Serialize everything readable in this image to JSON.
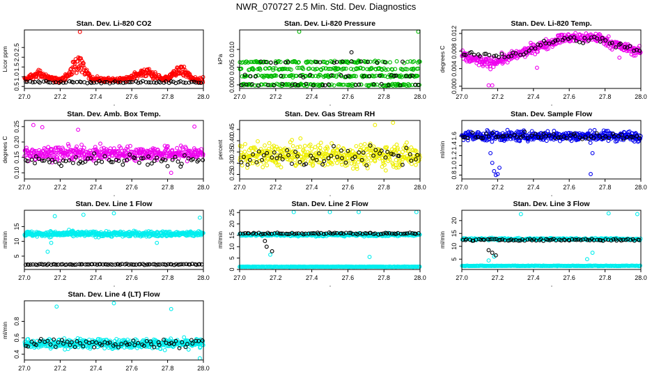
{
  "page": {
    "title": "NWR_070727  2.5 Min. Std. Dev. Diagnostics"
  },
  "chart_data": [
    {
      "type": "scatter",
      "title": "Stan. Dev. Li-820 CO2",
      "ylabel": "Licor ppm",
      "xlim": [
        27.0,
        28.0
      ],
      "ylim": [
        0.4,
        3.4
      ],
      "xticks": [
        "27.0",
        "27.2",
        "27.4",
        "27.6",
        "27.8",
        "28.0"
      ],
      "yticks": [
        {
          "v": 0.5,
          "label": "0.5"
        },
        {
          "v": 1.0,
          "label": "1.0"
        },
        {
          "v": 1.5,
          "label": "1.5"
        },
        {
          "v": 2.0,
          "label": "2.0"
        },
        {
          "v": 2.5,
          "label": "2.5"
        }
      ],
      "series": [
        {
          "color": "#ff0000",
          "base": 0.85,
          "noise": 0.12,
          "points": 440,
          "bumps": [
            {
              "x": 27.08,
              "w": 0.05,
              "h": 0.35
            },
            {
              "x": 27.3,
              "w": 0.05,
              "h": 1.0
            },
            {
              "x": 27.68,
              "w": 0.07,
              "h": 0.4
            },
            {
              "x": 27.87,
              "w": 0.05,
              "h": 0.6
            }
          ],
          "outliers": [
            {
              "x": 27.31,
              "y": 3.3
            }
          ]
        },
        {
          "color": "#000000",
          "base": 0.72,
          "noise": 0.05,
          "points": 70
        }
      ]
    },
    {
      "type": "scatter",
      "title": "Stan. Dev. Li-820 Pressure",
      "ylabel": "kPa",
      "xlim": [
        27.0,
        28.0
      ],
      "ylim": [
        -0.001,
        0.0155
      ],
      "xticks": [
        "27.0",
        "27.2",
        "27.4",
        "27.6",
        "27.8",
        "28.0"
      ],
      "yticks": [
        {
          "v": 0,
          "label": "0.000"
        },
        {
          "v": 0.005,
          "label": "0.005"
        },
        {
          "v": 0.01,
          "label": "0.010"
        }
      ],
      "series": [
        {
          "color": "#00bb00",
          "levels": [
            0,
            0.0025,
            0.0045,
            0.0065
          ],
          "points": 460,
          "outliers": [
            {
              "x": 27.33,
              "y": 0.015
            },
            {
              "x": 27.99,
              "y": 0.015
            }
          ]
        },
        {
          "color": "#000000",
          "levels": [
            0,
            0.0025,
            0.0065
          ],
          "points": 60,
          "outliers": [
            {
              "x": 27.62,
              "y": 0.0092
            }
          ]
        }
      ]
    },
    {
      "type": "scatter",
      "title": "Stan. Dev. Li-820 Temp.",
      "ylabel": "degrees C",
      "xlim": [
        27.0,
        28.0
      ],
      "ylim": [
        -0.0005,
        0.0128
      ],
      "xticks": [
        "27.0",
        "27.2",
        "27.4",
        "27.6",
        "27.8",
        "28.0"
      ],
      "yticks": [
        {
          "v": 0,
          "label": "0.000"
        },
        {
          "v": 0.004,
          "label": "0.004"
        },
        {
          "v": 0.008,
          "label": "0.008"
        },
        {
          "v": 0.012,
          "label": "0.012"
        }
      ],
      "series": [
        {
          "color": "#ee00ee",
          "trend": [
            [
              27.0,
              0.0068
            ],
            [
              27.15,
              0.0052
            ],
            [
              27.3,
              0.007
            ],
            [
              27.55,
              0.0108
            ],
            [
              27.75,
              0.0112
            ],
            [
              27.9,
              0.0088
            ],
            [
              28.0,
              0.0078
            ]
          ],
          "noise": 0.0011,
          "points": 420,
          "outliers": [
            {
              "x": 27.15,
              "y": 0.0002
            },
            {
              "x": 27.17,
              "y": 0.0002
            },
            {
              "x": 27.42,
              "y": 0.0042
            },
            {
              "x": 27.88,
              "y": 0.0065
            }
          ]
        },
        {
          "color": "#000000",
          "trend": [
            [
              27.0,
              0.0072
            ],
            [
              27.3,
              0.0072
            ],
            [
              27.55,
              0.0108
            ],
            [
              27.8,
              0.0104
            ],
            [
              28.0,
              0.0078
            ]
          ],
          "noise": 0.0008,
          "points": 60
        }
      ]
    },
    {
      "type": "scatter",
      "title": "Stan. Dev. Amb. Box Temp.",
      "ylabel": "degrees C",
      "xlim": [
        27.0,
        28.0
      ],
      "ylim": [
        0.08,
        0.27
      ],
      "xticks": [
        "27.0",
        "27.2",
        "27.4",
        "27.6",
        "27.8",
        "28.0"
      ],
      "yticks": [
        {
          "v": 0.1,
          "label": "0.10"
        },
        {
          "v": 0.15,
          "label": "0.15"
        },
        {
          "v": 0.2,
          "label": "0.20"
        },
        {
          "v": 0.25,
          "label": "0.25"
        }
      ],
      "series": [
        {
          "color": "#ee00ee",
          "base": 0.163,
          "noise": 0.022,
          "points": 440,
          "outliers": [
            {
              "x": 27.05,
              "y": 0.255
            },
            {
              "x": 27.1,
              "y": 0.248
            },
            {
              "x": 27.95,
              "y": 0.25
            },
            {
              "x": 27.3,
              "y": 0.24
            },
            {
              "x": 27.82,
              "y": 0.1
            }
          ]
        },
        {
          "color": "#000000",
          "base": 0.14,
          "noise": 0.018,
          "points": 65
        }
      ]
    },
    {
      "type": "scatter",
      "title": "Stan. Dev. Gas Stream RH",
      "ylabel": "percent",
      "xlim": [
        27.0,
        28.0
      ],
      "ylim": [
        0.23,
        0.49
      ],
      "xticks": [
        "27.0",
        "27.2",
        "27.4",
        "27.6",
        "27.8",
        "28.0"
      ],
      "yticks": [
        {
          "v": 0.25,
          "label": "0.25"
        },
        {
          "v": 0.3,
          "label": "0.30"
        },
        {
          "v": 0.35,
          "label": "0.35"
        },
        {
          "v": 0.4,
          "label": "0.40"
        },
        {
          "v": 0.45,
          "label": "0.45"
        }
      ],
      "series": [
        {
          "color": "#eeee00",
          "base": 0.335,
          "noise": 0.05,
          "points": 440,
          "outliers": [
            {
              "x": 27.75,
              "y": 0.47
            },
            {
              "x": 27.85,
              "y": 0.48
            }
          ]
        },
        {
          "color": "#000000",
          "base": 0.33,
          "noise": 0.045,
          "points": 60
        }
      ]
    },
    {
      "type": "scatter",
      "title": "Stan. Dev. Sample Flow",
      "ylabel": "ml/min",
      "xlim": [
        27.0,
        28.0
      ],
      "ylim": [
        0.72,
        1.92
      ],
      "xticks": [
        "27.0",
        "27.2",
        "27.4",
        "27.6",
        "27.8",
        "28.0"
      ],
      "yticks": [
        {
          "v": 0.8,
          "label": "0.8"
        },
        {
          "v": 1.0,
          "label": "1.0"
        },
        {
          "v": 1.2,
          "label": "1.2"
        },
        {
          "v": 1.4,
          "label": "1.4"
        },
        {
          "v": 1.6,
          "label": "1.6"
        }
      ],
      "series": [
        {
          "color": "#0000ee",
          "base": 1.6,
          "noise": 0.1,
          "points": 440,
          "outliers": [
            {
              "x": 27.16,
              "y": 1.25
            },
            {
              "x": 27.17,
              "y": 1.05
            },
            {
              "x": 27.18,
              "y": 0.88
            },
            {
              "x": 27.19,
              "y": 0.8
            },
            {
              "x": 27.2,
              "y": 0.82
            },
            {
              "x": 27.21,
              "y": 0.95
            },
            {
              "x": 27.72,
              "y": 0.82
            },
            {
              "x": 27.73,
              "y": 1.25
            }
          ]
        },
        {
          "color": "#000000",
          "base": 1.6,
          "noise": 0.06,
          "points": 60
        }
      ]
    },
    {
      "type": "scatter",
      "title": "Stan. Dev. Line 1 Flow",
      "ylabel": "ml/min",
      "xlim": [
        27.0,
        28.0
      ],
      "ylim": [
        0.5,
        20.5
      ],
      "xticks": [
        "27.0",
        "27.2",
        "27.4",
        "27.6",
        "27.8",
        "28.0"
      ],
      "yticks": [
        {
          "v": 5,
          "label": "5"
        },
        {
          "v": 10,
          "label": "10"
        },
        {
          "v": 15,
          "label": "15"
        }
      ],
      "series": [
        {
          "color": "#00eeee",
          "base": 12.5,
          "noise": 0.9,
          "points": 440,
          "outliers": [
            {
              "x": 27.13,
              "y": 6.5
            },
            {
              "x": 27.15,
              "y": 9.5
            },
            {
              "x": 27.17,
              "y": 18.5
            },
            {
              "x": 27.33,
              "y": 19.0
            },
            {
              "x": 27.5,
              "y": 19.5
            },
            {
              "x": 27.74,
              "y": 9.5
            },
            {
              "x": 27.98,
              "y": 18.0
            }
          ]
        },
        {
          "color": "#000000",
          "base": 2.2,
          "noise": 0.15,
          "points": 90
        }
      ]
    },
    {
      "type": "scatter",
      "title": "Stan. Dev. Line 2 Flow",
      "ylabel": "ml/min",
      "xlim": [
        27.0,
        28.0
      ],
      "ylim": [
        0,
        26
      ],
      "xticks": [
        "27.0",
        "27.2",
        "27.4",
        "27.6",
        "27.8",
        "28.0"
      ],
      "yticks": [
        {
          "v": 0,
          "label": "0"
        },
        {
          "v": 5,
          "label": "5"
        },
        {
          "v": 10,
          "label": "10"
        },
        {
          "v": 15,
          "label": "15"
        },
        {
          "v": 20,
          "label": "20"
        },
        {
          "v": 25,
          "label": "25"
        }
      ],
      "series": [
        {
          "color": "#00eeee",
          "base": 15.2,
          "noise": 0.6,
          "points": 300,
          "outliers": [
            {
              "x": 27.17,
              "y": 6.5
            },
            {
              "x": 27.3,
              "y": 25.2
            },
            {
              "x": 27.5,
              "y": 25.2
            },
            {
              "x": 27.66,
              "y": 25.2
            },
            {
              "x": 27.72,
              "y": 5.5
            },
            {
              "x": 27.98,
              "y": 25.2
            }
          ]
        },
        {
          "color": "#00eeee",
          "base": 1.2,
          "noise": 0.1,
          "points": 260
        },
        {
          "color": "#000000",
          "base": 15.8,
          "noise": 0.4,
          "points": 80,
          "outliers": [
            {
              "x": 27.14,
              "y": 12.5
            },
            {
              "x": 27.15,
              "y": 10.0
            },
            {
              "x": 27.18,
              "y": 8.0
            }
          ]
        }
      ]
    },
    {
      "type": "scatter",
      "title": "Stan. Dev. Line 3 Flow",
      "ylabel": "ml/min",
      "xlim": [
        27.0,
        28.0
      ],
      "ylim": [
        1.0,
        24
      ],
      "xticks": [
        "27.0",
        "27.2",
        "27.4",
        "27.6",
        "27.8",
        "28.0"
      ],
      "yticks": [
        {
          "v": 5,
          "label": "5"
        },
        {
          "v": 10,
          "label": "10"
        },
        {
          "v": 15,
          "label": "15"
        },
        {
          "v": 20,
          "label": "20"
        }
      ],
      "series": [
        {
          "color": "#00eeee",
          "base": 12.8,
          "noise": 0.4,
          "points": 300,
          "outliers": [
            {
              "x": 27.15,
              "y": 4.5
            },
            {
              "x": 27.18,
              "y": 6.0
            },
            {
              "x": 27.33,
              "y": 22.5
            },
            {
              "x": 27.7,
              "y": 5.0
            },
            {
              "x": 27.73,
              "y": 7.5
            },
            {
              "x": 27.82,
              "y": 22.8
            },
            {
              "x": 27.98,
              "y": 22.5
            }
          ]
        },
        {
          "color": "#00eeee",
          "base": 2.4,
          "noise": 0.1,
          "points": 260
        },
        {
          "color": "#000000",
          "base": 12.5,
          "noise": 0.4,
          "points": 80,
          "outliers": [
            {
              "x": 27.15,
              "y": 8.5
            },
            {
              "x": 27.17,
              "y": 7.5
            },
            {
              "x": 27.19,
              "y": 6.5
            }
          ]
        }
      ]
    },
    {
      "type": "scatter",
      "title": "Stan. Dev. Line 4 (LT) Flow",
      "ylabel": "ml/min",
      "xlim": [
        27.0,
        28.0
      ],
      "ylim": [
        0.33,
        1.05
      ],
      "xticks": [
        "27.0",
        "27.2",
        "27.4",
        "27.6",
        "27.8",
        "28.0"
      ],
      "yticks": [
        {
          "v": 0.4,
          "label": "0.4"
        },
        {
          "v": 0.6,
          "label": "0.6"
        },
        {
          "v": 0.8,
          "label": "0.8"
        }
      ],
      "series": [
        {
          "color": "#00eeee",
          "base": 0.53,
          "noise": 0.055,
          "points": 440,
          "outliers": [
            {
              "x": 27.18,
              "y": 0.98
            },
            {
              "x": 27.5,
              "y": 1.02
            },
            {
              "x": 27.82,
              "y": 0.95
            },
            {
              "x": 27.98,
              "y": 0.35
            }
          ]
        },
        {
          "color": "#000000",
          "base": 0.53,
          "noise": 0.05,
          "points": 65
        }
      ]
    }
  ]
}
